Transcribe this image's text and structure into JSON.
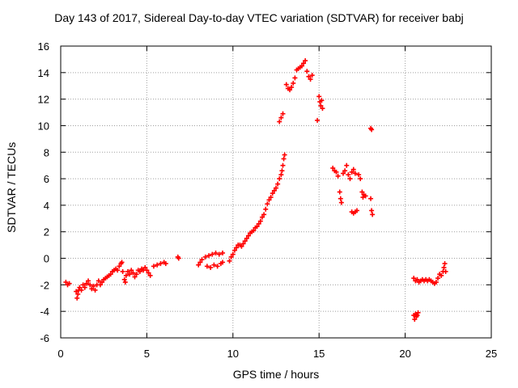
{
  "chart_data": {
    "type": "scatter",
    "title": "Day 143 of 2017, Sidereal Day-to-day VTEC variation (SDTVAR) for receiver babj",
    "xlabel": "GPS time / hours",
    "ylabel": "SDTVAR / TECUs",
    "xlim": [
      0,
      25
    ],
    "ylim": [
      -6,
      16
    ],
    "xticks": [
      0,
      5,
      10,
      15,
      20,
      25
    ],
    "yticks": [
      -6,
      -4,
      -2,
      0,
      2,
      4,
      6,
      8,
      10,
      12,
      14,
      16
    ],
    "grid": true,
    "marker": "+",
    "series": [
      {
        "name": "SDTVAR",
        "color": "#ff0000",
        "points": [
          [
            0.3,
            -1.8
          ],
          [
            0.4,
            -2.0
          ],
          [
            0.5,
            -1.9
          ],
          [
            0.9,
            -2.5
          ],
          [
            0.95,
            -3.0
          ],
          [
            1.0,
            -2.7
          ],
          [
            1.05,
            -2.4
          ],
          [
            1.1,
            -2.2
          ],
          [
            1.2,
            -2.4
          ],
          [
            1.3,
            -2.0
          ],
          [
            1.4,
            -2.2
          ],
          [
            1.5,
            -1.9
          ],
          [
            1.6,
            -1.7
          ],
          [
            1.7,
            -2.0
          ],
          [
            1.8,
            -2.3
          ],
          [
            1.9,
            -2.1
          ],
          [
            2.0,
            -2.4
          ],
          [
            2.1,
            -2.0
          ],
          [
            2.2,
            -1.7
          ],
          [
            2.3,
            -2.0
          ],
          [
            2.4,
            -1.8
          ],
          [
            2.5,
            -1.6
          ],
          [
            2.6,
            -1.5
          ],
          [
            2.7,
            -1.4
          ],
          [
            2.8,
            -1.3
          ],
          [
            2.9,
            -1.2
          ],
          [
            3.0,
            -1.0
          ],
          [
            3.1,
            -0.9
          ],
          [
            3.2,
            -0.8
          ],
          [
            3.3,
            -0.9
          ],
          [
            3.4,
            -0.6
          ],
          [
            3.5,
            -0.4
          ],
          [
            3.55,
            -0.3
          ],
          [
            3.6,
            -1.0
          ],
          [
            3.7,
            -1.6
          ],
          [
            3.75,
            -1.8
          ],
          [
            3.8,
            -1.3
          ],
          [
            3.9,
            -1.0
          ],
          [
            4.0,
            -1.2
          ],
          [
            4.1,
            -0.9
          ],
          [
            4.2,
            -1.1
          ],
          [
            4.3,
            -1.4
          ],
          [
            4.4,
            -1.2
          ],
          [
            4.5,
            -0.9
          ],
          [
            4.6,
            -1.0
          ],
          [
            4.7,
            -0.8
          ],
          [
            4.8,
            -0.9
          ],
          [
            4.9,
            -0.7
          ],
          [
            5.0,
            -0.9
          ],
          [
            5.1,
            -1.1
          ],
          [
            5.2,
            -1.3
          ],
          [
            5.4,
            -0.6
          ],
          [
            5.6,
            -0.5
          ],
          [
            5.8,
            -0.4
          ],
          [
            6.0,
            -0.3
          ],
          [
            6.1,
            -0.4
          ],
          [
            6.8,
            0.1
          ],
          [
            6.85,
            0.0
          ],
          [
            8.0,
            -0.5
          ],
          [
            8.1,
            -0.3
          ],
          [
            8.2,
            -0.1
          ],
          [
            8.4,
            0.1
          ],
          [
            8.6,
            0.2
          ],
          [
            8.8,
            0.3
          ],
          [
            9.0,
            0.4
          ],
          [
            9.2,
            0.3
          ],
          [
            9.4,
            0.4
          ],
          [
            8.5,
            -0.6
          ],
          [
            8.7,
            -0.7
          ],
          [
            8.9,
            -0.5
          ],
          [
            9.1,
            -0.6
          ],
          [
            9.3,
            -0.4
          ],
          [
            9.4,
            -0.3
          ],
          [
            9.8,
            -0.2
          ],
          [
            9.9,
            0.1
          ],
          [
            10.0,
            0.3
          ],
          [
            10.1,
            0.6
          ],
          [
            10.2,
            0.8
          ],
          [
            10.3,
            1.0
          ],
          [
            10.4,
            1.0
          ],
          [
            10.5,
            0.9
          ],
          [
            10.6,
            1.1
          ],
          [
            10.7,
            1.3
          ],
          [
            10.8,
            1.5
          ],
          [
            10.9,
            1.7
          ],
          [
            11.0,
            1.9
          ],
          [
            11.1,
            2.0
          ],
          [
            11.2,
            2.1
          ],
          [
            11.3,
            2.3
          ],
          [
            11.4,
            2.4
          ],
          [
            11.5,
            2.6
          ],
          [
            11.6,
            2.8
          ],
          [
            11.7,
            3.1
          ],
          [
            11.8,
            3.3
          ],
          [
            11.9,
            3.7
          ],
          [
            12.0,
            4.1
          ],
          [
            12.1,
            4.4
          ],
          [
            12.2,
            4.6
          ],
          [
            12.3,
            4.9
          ],
          [
            12.4,
            5.1
          ],
          [
            12.5,
            5.3
          ],
          [
            12.6,
            5.6
          ],
          [
            12.7,
            6.0
          ],
          [
            12.8,
            6.3
          ],
          [
            12.85,
            6.6
          ],
          [
            12.9,
            7.0
          ],
          [
            12.95,
            7.5
          ],
          [
            13.0,
            7.8
          ],
          [
            12.7,
            10.3
          ],
          [
            12.8,
            10.6
          ],
          [
            12.9,
            10.9
          ],
          [
            13.1,
            13.1
          ],
          [
            13.2,
            12.8
          ],
          [
            13.3,
            12.7
          ],
          [
            13.4,
            12.9
          ],
          [
            13.5,
            13.2
          ],
          [
            13.6,
            13.6
          ],
          [
            13.7,
            14.2
          ],
          [
            13.8,
            14.3
          ],
          [
            13.9,
            14.4
          ],
          [
            14.0,
            14.5
          ],
          [
            14.1,
            14.7
          ],
          [
            14.2,
            14.9
          ],
          [
            14.3,
            14.1
          ],
          [
            14.4,
            13.7
          ],
          [
            14.5,
            13.5
          ],
          [
            14.6,
            13.8
          ],
          [
            14.9,
            10.4
          ],
          [
            15.0,
            12.2
          ],
          [
            15.05,
            11.8
          ],
          [
            15.1,
            11.5
          ],
          [
            15.15,
            11.9
          ],
          [
            15.2,
            11.3
          ],
          [
            15.8,
            6.8
          ],
          [
            15.9,
            6.6
          ],
          [
            16.0,
            6.5
          ],
          [
            16.1,
            6.2
          ],
          [
            16.2,
            5.0
          ],
          [
            16.25,
            4.5
          ],
          [
            16.3,
            4.2
          ],
          [
            16.4,
            6.4
          ],
          [
            16.5,
            6.6
          ],
          [
            16.6,
            7.0
          ],
          [
            16.7,
            6.3
          ],
          [
            16.8,
            6.0
          ],
          [
            16.9,
            6.5
          ],
          [
            17.0,
            6.7
          ],
          [
            17.1,
            6.4
          ],
          [
            16.9,
            3.5
          ],
          [
            17.0,
            3.4
          ],
          [
            17.1,
            3.5
          ],
          [
            17.2,
            3.6
          ],
          [
            17.3,
            6.3
          ],
          [
            17.4,
            6.0
          ],
          [
            17.5,
            5.0
          ],
          [
            17.55,
            4.6
          ],
          [
            17.6,
            4.8
          ],
          [
            17.7,
            4.7
          ],
          [
            18.0,
            4.5
          ],
          [
            18.05,
            3.6
          ],
          [
            18.1,
            3.3
          ],
          [
            18.0,
            9.8
          ],
          [
            18.05,
            9.7
          ],
          [
            20.5,
            -1.5
          ],
          [
            20.6,
            -1.7
          ],
          [
            20.7,
            -1.6
          ],
          [
            20.8,
            -1.8
          ],
          [
            20.9,
            -1.7
          ],
          [
            21.0,
            -1.6
          ],
          [
            21.1,
            -1.7
          ],
          [
            21.2,
            -1.6
          ],
          [
            21.3,
            -1.7
          ],
          [
            21.4,
            -1.6
          ],
          [
            21.5,
            -1.7
          ],
          [
            21.6,
            -1.8
          ],
          [
            21.7,
            -1.9
          ],
          [
            21.8,
            -1.8
          ],
          [
            21.9,
            -1.5
          ],
          [
            22.0,
            -1.2
          ],
          [
            22.1,
            -1.3
          ],
          [
            22.2,
            -1.0
          ],
          [
            22.25,
            -0.7
          ],
          [
            22.3,
            -0.4
          ],
          [
            22.35,
            -1.0
          ],
          [
            20.5,
            -4.3
          ],
          [
            20.55,
            -4.6
          ],
          [
            20.6,
            -4.2
          ],
          [
            20.65,
            -4.4
          ],
          [
            20.7,
            -4.3
          ],
          [
            20.75,
            -4.1
          ]
        ]
      }
    ]
  }
}
